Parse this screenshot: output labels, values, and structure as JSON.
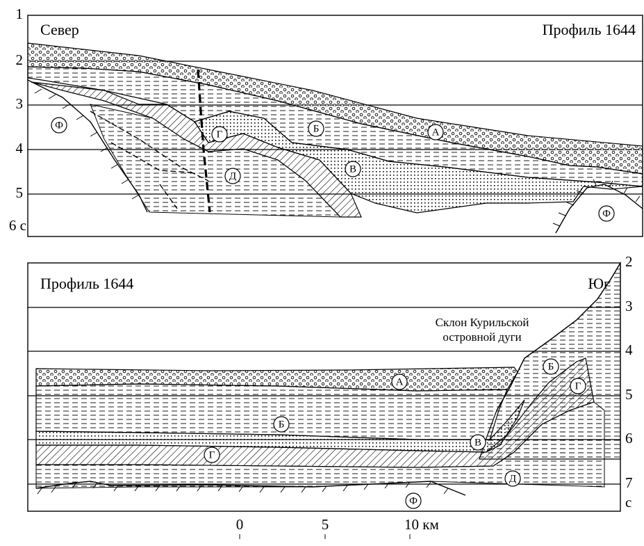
{
  "top_panel": {
    "title_left": "Север",
    "title_right": "Профиль 1644",
    "time_labels": [
      "1",
      "2",
      "3",
      "4",
      "5",
      "6 с"
    ],
    "unit_labels": [
      "Ф",
      "Г",
      "Б",
      "А",
      "В",
      "Д",
      "Ф"
    ]
  },
  "bottom_panel": {
    "title_left": "Профиль 1644",
    "title_right": "Юг",
    "annotation": [
      "Склон Курильской",
      "островной дуги"
    ],
    "time_labels": [
      "2",
      "3",
      "4",
      "5",
      "6",
      "7",
      "с"
    ],
    "unit_labels": [
      "А",
      "Б",
      "В",
      "Г",
      "Б",
      "Г",
      "Д",
      "Ф"
    ]
  },
  "scale_bar": {
    "labels": [
      "0",
      "5",
      "10 км"
    ]
  }
}
